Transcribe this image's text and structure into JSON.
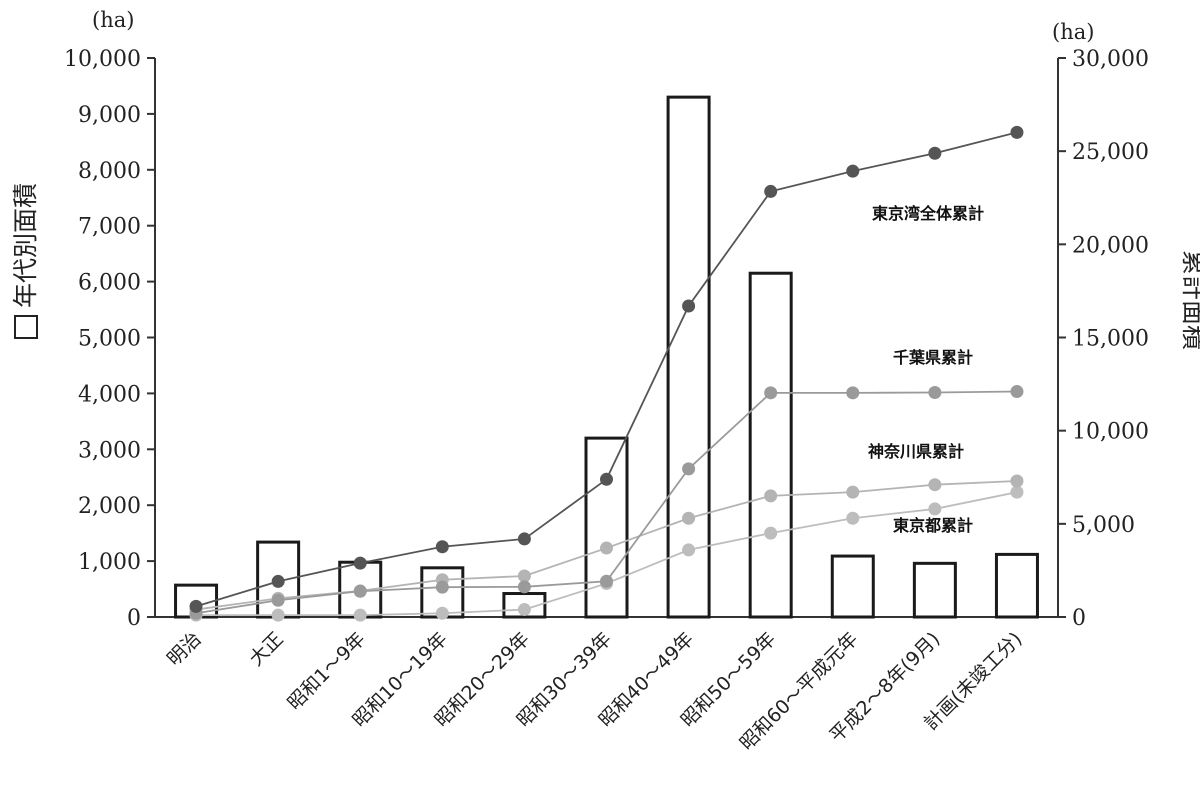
{
  "chart_data": {
    "type": "bar+line",
    "categories": [
      "明治",
      "大正",
      "昭和1～9年",
      "昭和10～19年",
      "昭和20～29年",
      "昭和30～39年",
      "昭和40～49年",
      "昭和50～59年",
      "昭和60～平成元年",
      "平成2～8年(9月)",
      "計画(未竣工分)"
    ],
    "bars": {
      "name": "年代別面積",
      "values": [
        570,
        1340,
        980,
        880,
        420,
        3200,
        9300,
        6150,
        1090,
        960,
        1120
      ]
    },
    "series": [
      {
        "name": "東京湾全体累計",
        "color": "#555555",
        "values": [
          570,
          1910,
          2890,
          3770,
          4190,
          7390,
          16690,
          22840,
          23930,
          24890,
          26010
        ]
      },
      {
        "name": "千葉県累計",
        "color": "#9a9a9a",
        "values": [
          200,
          900,
          1380,
          1600,
          1620,
          1920,
          7950,
          12030,
          12030,
          12050,
          12100
        ]
      },
      {
        "name": "神奈川県累計",
        "color": "#b4b4b4",
        "values": [
          400,
          1000,
          1400,
          2000,
          2200,
          3700,
          5300,
          6500,
          6700,
          7100,
          7300
        ]
      },
      {
        "name": "東京都累計",
        "color": "#bdbdbd",
        "values": [
          100,
          100,
          100,
          200,
          400,
          1800,
          3600,
          4500,
          5300,
          5800,
          6700
        ]
      }
    ],
    "y_left": {
      "label": "年代別面積",
      "unit": "(ha)",
      "range": [
        0,
        10000
      ],
      "ticks": [
        0,
        1000,
        2000,
        3000,
        4000,
        5000,
        6000,
        7000,
        8000,
        9000,
        10000
      ],
      "tick_labels": [
        "0",
        "1,000",
        "2,000",
        "3,000",
        "4,000",
        "5,000",
        "6,000",
        "7,000",
        "8,000",
        "9,000",
        "10,000"
      ]
    },
    "y_right": {
      "label": "累計面積",
      "unit": "(ha)",
      "range": [
        0,
        30000
      ],
      "ticks": [
        0,
        5000,
        10000,
        15000,
        20000,
        25000,
        30000
      ],
      "tick_labels": [
        "0",
        "5,000",
        "10,000",
        "15,000",
        "20,000",
        "25,000",
        "30,000"
      ]
    },
    "grid": false
  }
}
